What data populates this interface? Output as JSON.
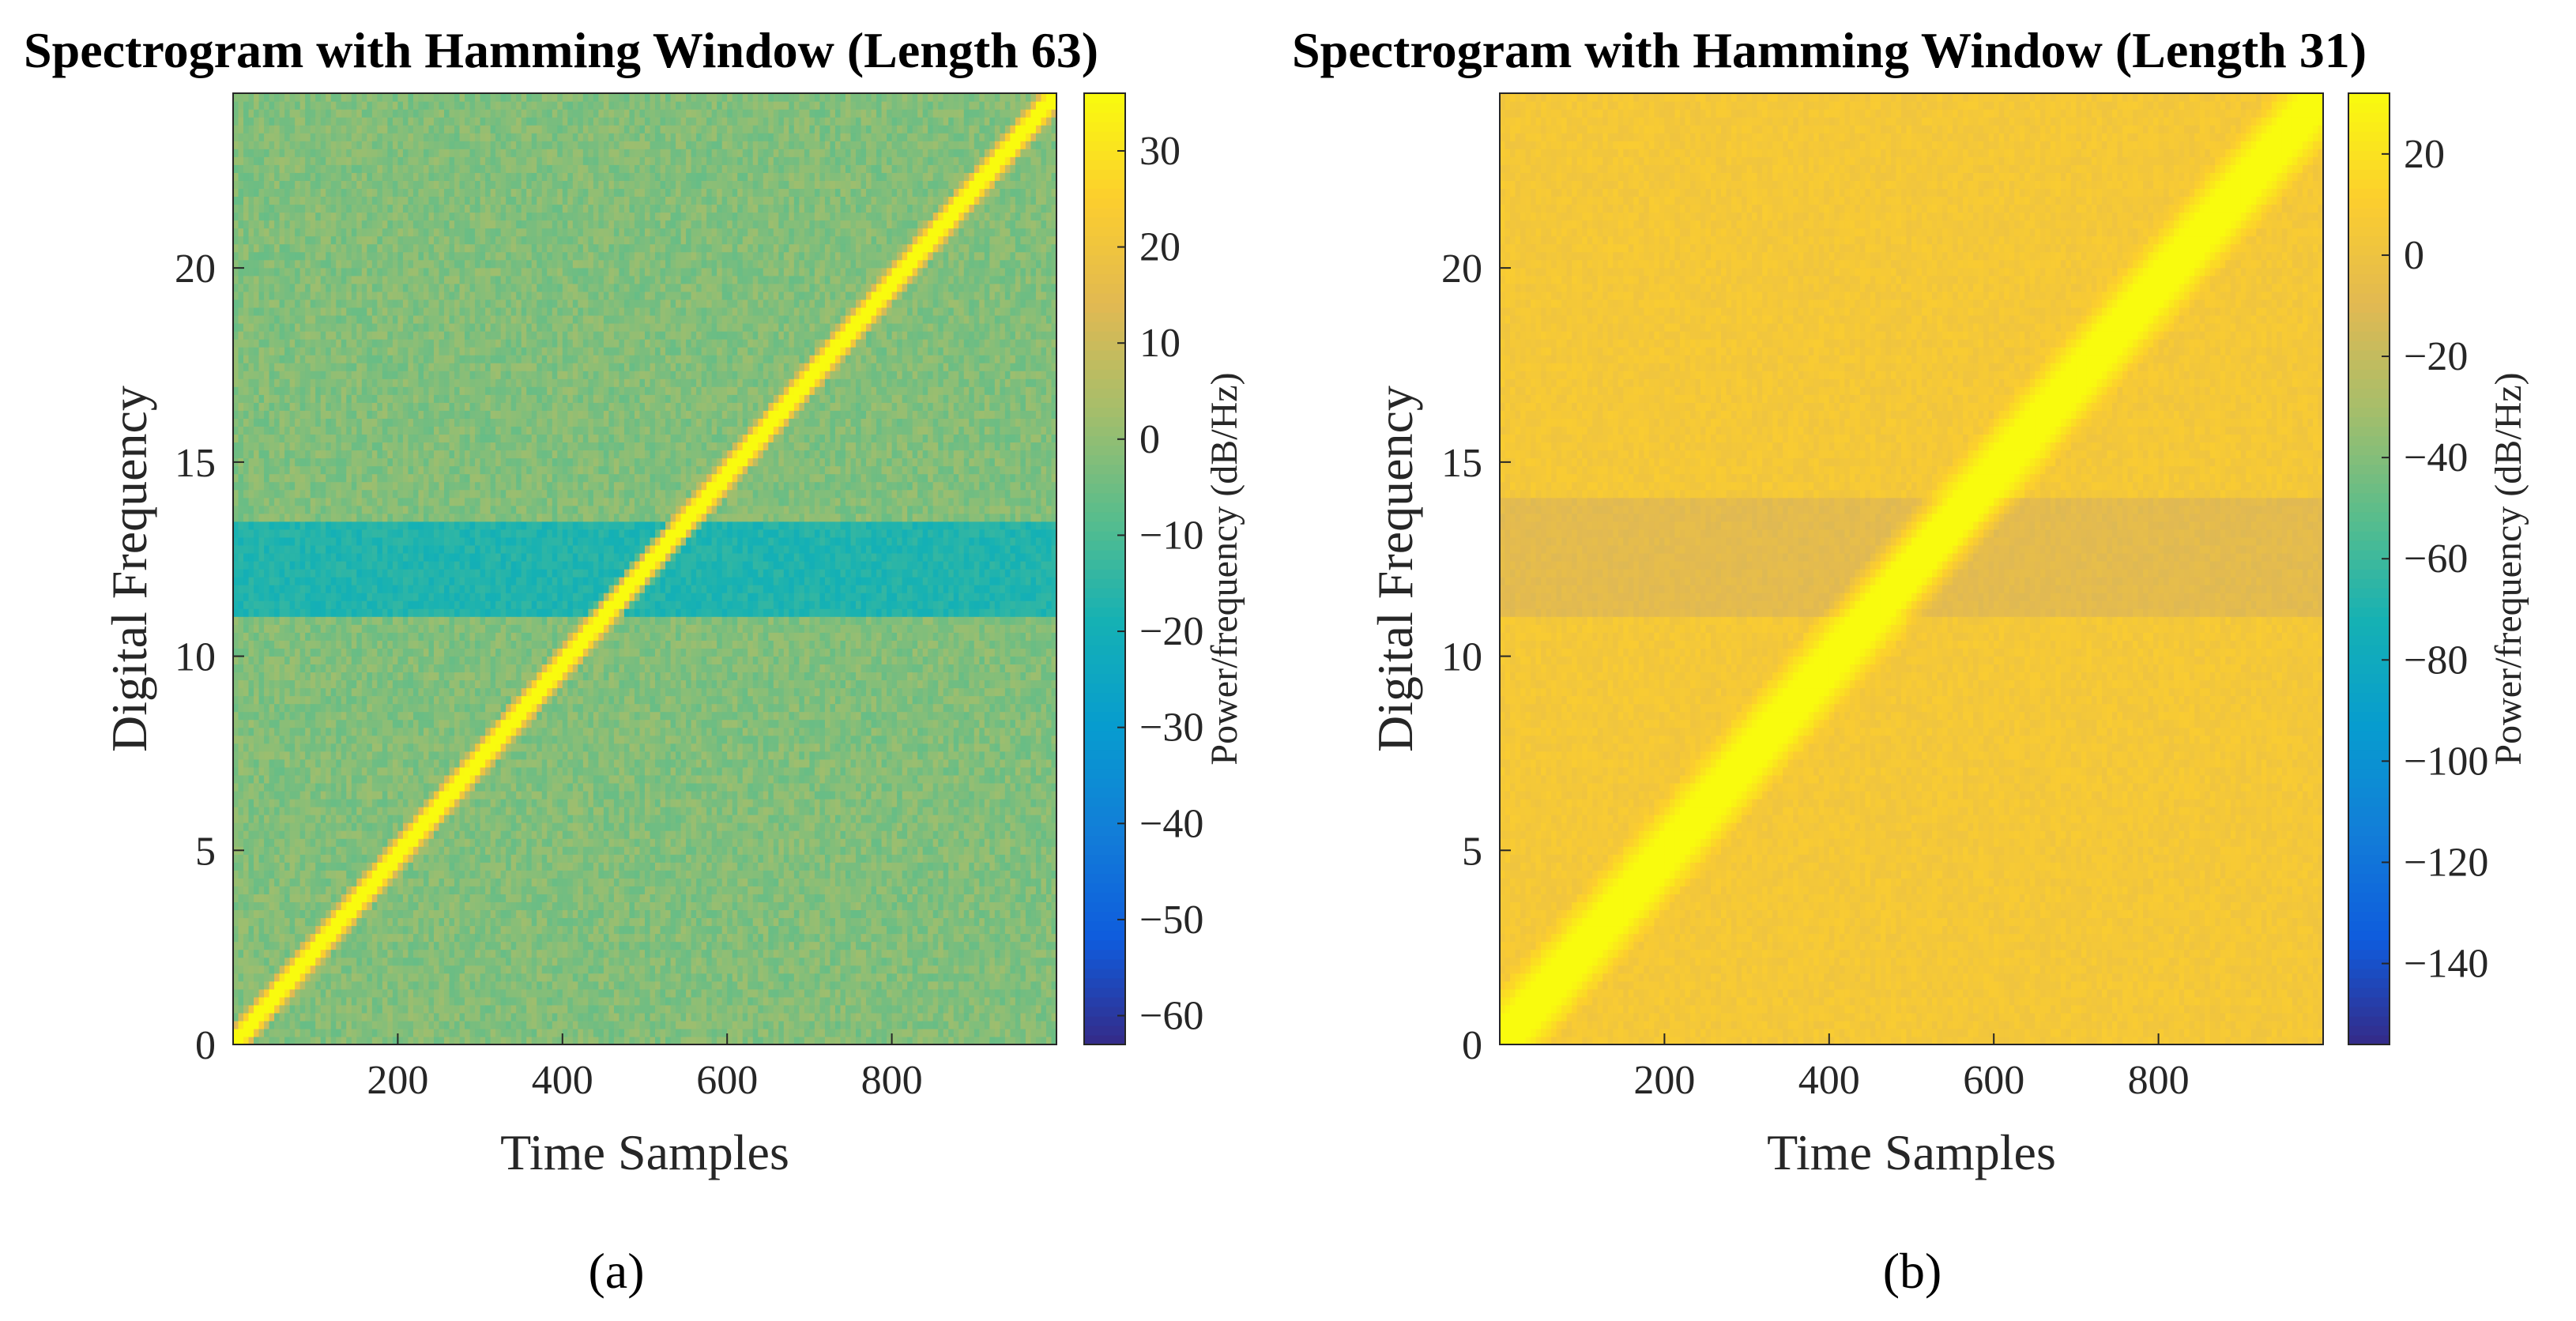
{
  "chart_data": [
    {
      "type": "heatmap",
      "title": "Spectrogram with Hamming Window (Length 63)",
      "xlabel": "Time Samples",
      "ylabel": "Digital Frequency",
      "xlim": [
        0,
        1000
      ],
      "ylim": [
        0,
        24.5
      ],
      "xticks": [
        200,
        400,
        600,
        800
      ],
      "yticks": [
        0,
        5,
        10,
        15,
        20
      ],
      "colorbar": {
        "label": "Power/frequency (dB/Hz)",
        "range": [
          -63,
          36
        ],
        "ticks": [
          -60,
          -50,
          -40,
          -30,
          -20,
          -10,
          0,
          10,
          20,
          30
        ]
      },
      "background_level_db": -2,
      "dip_band": {
        "freq_range": [
          11,
          13.5
        ],
        "level_db": -17
      },
      "chirp": {
        "time_range": [
          0,
          1000
        ],
        "freq_range": [
          0,
          24.5
        ],
        "width_freq": 0.6,
        "level_db": 36
      },
      "caption": "(a)"
    },
    {
      "type": "heatmap",
      "title": "Spectrogram with Hamming Window (Length 31)",
      "xlabel": "Time Samples",
      "ylabel": "Digital Frequency",
      "xlim": [
        0,
        1000
      ],
      "ylim": [
        0,
        24.5
      ],
      "xticks": [
        200,
        400,
        600,
        800
      ],
      "yticks": [
        0,
        5,
        10,
        15,
        20
      ],
      "colorbar": {
        "label": "Power/frequency (dB/Hz)",
        "range": [
          -156,
          32
        ],
        "ticks": [
          -140,
          -120,
          -100,
          -80,
          -60,
          -40,
          -20,
          0,
          20
        ]
      },
      "background_level_db": 5,
      "dip_band": {
        "freq_range": [
          11,
          14
        ],
        "level_db": -8
      },
      "chirp": {
        "time_range": [
          0,
          1000
        ],
        "freq_range": [
          0,
          24.5
        ],
        "width_freq": 1.6,
        "level_db": 32
      },
      "caption": "(b)"
    }
  ]
}
